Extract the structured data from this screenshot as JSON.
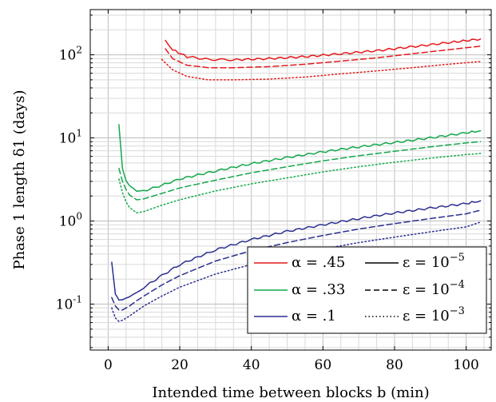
{
  "chart_data": {
    "type": "line",
    "title": "",
    "xlabel": "Intended time between blocks b (min)",
    "ylabel": "Phase 1 length δ1 (days)",
    "xlim": [
      -5,
      107
    ],
    "ylim": [
      0.028,
      350
    ],
    "yscale": "log",
    "grid": true,
    "legend_position": "lower-right",
    "xticks": [
      0,
      20,
      40,
      60,
      80,
      100
    ],
    "xtick_labels": [
      "0",
      "20",
      "40",
      "60",
      "80",
      "100"
    ],
    "yticks": [
      0.1,
      1,
      10,
      100
    ],
    "ytick_labels": [
      "10^-1",
      "10^0",
      "10^1",
      "10^2"
    ],
    "legend_alpha": [
      {
        "label": "α = .45",
        "color": "#e41a1c"
      },
      {
        "label": "α = .33",
        "color": "#13a84a"
      },
      {
        "label": "α = .1",
        "color": "#2b2f8f"
      }
    ],
    "legend_epsilon": [
      {
        "label": "ε = 10^-5",
        "style": "solid"
      },
      {
        "label": "ε = 10^-4",
        "style": "dashed"
      },
      {
        "label": "ε = 10^-3",
        "style": "dotted"
      }
    ],
    "series": [
      {
        "alpha": ".45",
        "epsilon": "10^-5",
        "color": "#e41a1c",
        "style": "solid",
        "x": [
          16,
          18,
          22,
          28,
          35,
          45,
          55,
          65,
          75,
          85,
          95,
          104
        ],
        "y": [
          150,
          115,
          95,
          88,
          87,
          90,
          95,
          103,
          112,
          125,
          140,
          155
        ]
      },
      {
        "alpha": ".45",
        "epsilon": "10^-4",
        "color": "#e41a1c",
        "style": "dashed",
        "x": [
          16,
          18,
          22,
          28,
          35,
          45,
          55,
          65,
          75,
          85,
          95,
          104
        ],
        "y": [
          118,
          90,
          75,
          70,
          70,
          72,
          77,
          84,
          92,
          103,
          115,
          127
        ]
      },
      {
        "alpha": ".45",
        "epsilon": "10^-3",
        "color": "#e41a1c",
        "style": "dotted",
        "x": [
          15,
          18,
          22,
          28,
          35,
          45,
          55,
          65,
          75,
          85,
          95,
          104
        ],
        "y": [
          88,
          66,
          55,
          50,
          50,
          51,
          54,
          59,
          64,
          70,
          77,
          83
        ]
      },
      {
        "alpha": ".33",
        "epsilon": "10^-5",
        "color": "#13a84a",
        "style": "solid",
        "x": [
          3,
          4,
          5,
          6,
          8,
          10,
          15,
          20,
          30,
          40,
          50,
          60,
          70,
          80,
          90,
          100,
          104
        ],
        "y": [
          14.5,
          4.3,
          3.1,
          2.7,
          2.3,
          2.3,
          2.7,
          3.2,
          4.0,
          4.9,
          5.8,
          6.8,
          7.8,
          8.8,
          10.0,
          11.5,
          12.2
        ]
      },
      {
        "alpha": ".33",
        "epsilon": "10^-4",
        "color": "#13a84a",
        "style": "dashed",
        "x": [
          3,
          4,
          5,
          6,
          8,
          10,
          15,
          20,
          30,
          40,
          50,
          60,
          70,
          80,
          90,
          100,
          104
        ],
        "y": [
          4.3,
          3.0,
          2.4,
          2.05,
          1.8,
          1.85,
          2.15,
          2.5,
          3.1,
          3.8,
          4.5,
          5.3,
          6.1,
          6.9,
          7.8,
          8.7,
          9.0
        ]
      },
      {
        "alpha": ".33",
        "epsilon": "10^-3",
        "color": "#13a84a",
        "style": "dotted",
        "x": [
          3,
          4,
          5,
          6,
          8,
          10,
          15,
          20,
          30,
          40,
          50,
          60,
          70,
          80,
          90,
          100,
          104
        ],
        "y": [
          3.2,
          2.2,
          1.7,
          1.45,
          1.25,
          1.3,
          1.55,
          1.8,
          2.3,
          2.8,
          3.3,
          3.9,
          4.5,
          5.1,
          5.7,
          6.3,
          6.5
        ]
      },
      {
        "alpha": ".1",
        "epsilon": "10^-5",
        "color": "#2b2f8f",
        "style": "solid",
        "x": [
          1,
          2,
          3,
          4,
          6,
          8,
          10,
          15,
          20,
          30,
          40,
          50,
          60,
          70,
          80,
          90,
          100,
          104
        ],
        "y": [
          0.32,
          0.13,
          0.11,
          0.11,
          0.12,
          0.14,
          0.16,
          0.22,
          0.3,
          0.45,
          0.6,
          0.75,
          0.9,
          1.07,
          1.25,
          1.43,
          1.62,
          1.75
        ]
      },
      {
        "alpha": ".1",
        "epsilon": "10^-4",
        "color": "#2b2f8f",
        "style": "dashed",
        "x": [
          1,
          2,
          3,
          4,
          6,
          8,
          10,
          15,
          20,
          30,
          40,
          50,
          60,
          70,
          80,
          90,
          100,
          104
        ],
        "y": [
          0.12,
          0.095,
          0.085,
          0.085,
          0.095,
          0.11,
          0.125,
          0.17,
          0.22,
          0.33,
          0.44,
          0.55,
          0.67,
          0.8,
          0.93,
          1.07,
          1.22,
          1.35
        ]
      },
      {
        "alpha": ".1",
        "epsilon": "10^-3",
        "color": "#2b2f8f",
        "style": "dotted",
        "x": [
          1,
          2,
          3,
          4,
          6,
          8,
          10,
          15,
          20,
          30,
          40,
          50,
          60,
          70,
          80,
          90,
          100,
          104
        ],
        "y": [
          0.09,
          0.068,
          0.062,
          0.064,
          0.072,
          0.083,
          0.095,
          0.125,
          0.16,
          0.23,
          0.3,
          0.38,
          0.46,
          0.55,
          0.64,
          0.74,
          0.85,
          0.97
        ]
      }
    ]
  }
}
